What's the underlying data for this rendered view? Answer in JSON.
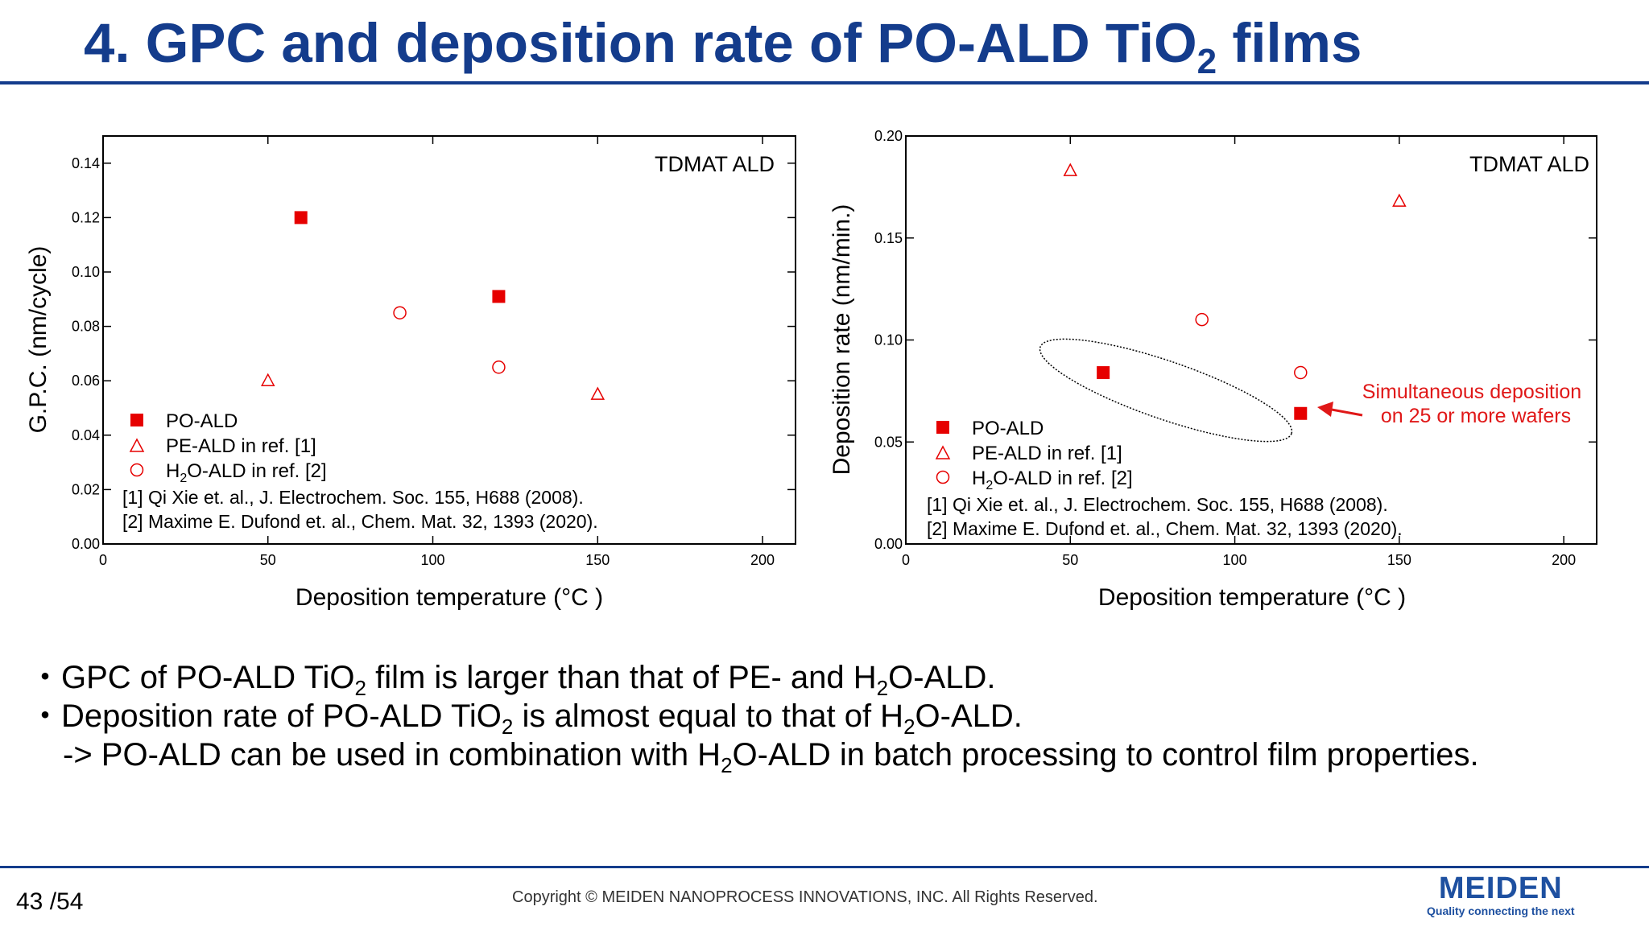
{
  "slide": {
    "title_main": "4. GPC and deposition rate of PO-ALD TiO",
    "title_sub": "2",
    "title_end": " films",
    "page_number": "43",
    "page_total": "/54",
    "copyright": "Copyright © MEIDEN NANOPROCESS INNOVATIONS, INC. All Rights Reserved.",
    "logo_brand": "MEIDEN",
    "logo_tagline": "Quality connecting the next"
  },
  "bullets": [
    {
      "parts": [
        "・GPC of PO-ALD TiO",
        "2",
        " film is larger than that of PE- and H",
        "2",
        "O-ALD."
      ]
    },
    {
      "parts": [
        "・Deposition rate of PO-ALD TiO",
        "2",
        " is almost equal to that of H",
        "2",
        "O-ALD."
      ]
    },
    {
      "parts": [
        "-> PO-ALD can be used in combination with H",
        "2",
        "O-ALD in batch processing to control film properties."
      ]
    }
  ],
  "colors": {
    "title_blue": "#143c8c",
    "marker_red": "#e60000",
    "annotation_red": "#e01818"
  },
  "chart_data": [
    {
      "type": "scatter",
      "label": "TDMAT ALD",
      "xlabel": "Deposition temperature (°C )",
      "ylabel": "G.P.C. (nm/cycle)",
      "xlim": [
        0,
        210
      ],
      "ylim": [
        0,
        0.15
      ],
      "xticks": [
        "0",
        "50",
        "100",
        "150",
        "200"
      ],
      "yticks": [
        "0.00",
        "0.02",
        "0.04",
        "0.06",
        "0.08",
        "0.10",
        "0.12",
        "0.14"
      ],
      "legend_position": "bottom-left",
      "series": [
        {
          "name": "PO-ALD",
          "marker": "filled-square",
          "points": [
            [
              60,
              0.12
            ],
            [
              120,
              0.091
            ]
          ]
        },
        {
          "name": "PE-ALD in ref. [1]",
          "marker": "open-triangle",
          "points": [
            [
              50,
              0.06
            ],
            [
              150,
              0.055
            ]
          ]
        },
        {
          "name": "H2O-ALD in ref. [2]",
          "marker": "open-circle",
          "points": [
            [
              90,
              0.085
            ],
            [
              120,
              0.065
            ]
          ]
        }
      ],
      "legend_labels": [
        "PO-ALD",
        "PE-ALD in ref. [1]",
        "H",
        "2",
        "O-ALD in ref. [2]"
      ],
      "references": [
        "[1] Qi Xie et. al., J. Electrochem. Soc. 155, H688 (2008).",
        "[2] Maxime E. Dufond et. al., Chem. Mat. 32, 1393 (2020)."
      ]
    },
    {
      "type": "scatter",
      "label": "TDMAT ALD",
      "xlabel": "Deposition temperature (°C )",
      "ylabel": "Deposition rate (nm/min.)",
      "xlim": [
        0,
        210
      ],
      "ylim": [
        0,
        0.2
      ],
      "xticks": [
        "0",
        "50",
        "100",
        "150",
        "200"
      ],
      "yticks": [
        "0.00",
        "0.05",
        "0.10",
        "0.15",
        "0.20"
      ],
      "legend_position": "bottom-left",
      "series": [
        {
          "name": "PO-ALD",
          "marker": "filled-square",
          "points": [
            [
              60,
              0.084
            ],
            [
              120,
              0.064
            ]
          ]
        },
        {
          "name": "PE-ALD in ref. [1]",
          "marker": "open-triangle",
          "points": [
            [
              50,
              0.183
            ],
            [
              150,
              0.168
            ]
          ]
        },
        {
          "name": "H2O-ALD in ref. [2]",
          "marker": "open-circle",
          "points": [
            [
              90,
              0.11
            ],
            [
              120,
              0.084
            ]
          ]
        }
      ],
      "legend_labels": [
        "PO-ALD",
        "PE-ALD in ref. [1]",
        "H",
        "2",
        "O-ALD in ref. [2]"
      ],
      "references": [
        "[1] Qi Xie et. al., J. Electrochem. Soc. 155, H688 (2008).",
        "[2] Maxime E. Dufond et. al., Chem. Mat. 32, 1393 (2020)."
      ],
      "annotation": {
        "lines": [
          "Simultaneous deposition",
          "on 25 or more wafers"
        ],
        "target": [
          120,
          0.064
        ]
      }
    }
  ]
}
